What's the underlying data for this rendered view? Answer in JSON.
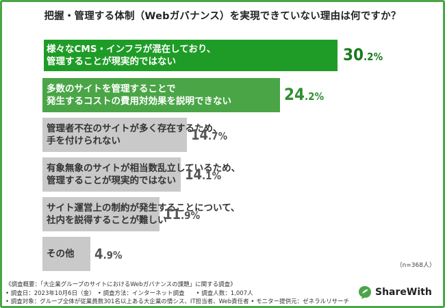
{
  "title": "把握・管理する体制（Webガバナンス）を実現できていない理由は何ですか？",
  "sample_size": "（n=368人）",
  "footnotes": [
    "《調査概要：「大企業グループのサイトにおけるWebガバナンスの課題」に関する調査》",
    "• 調査日：2023年10月6日（金）　• 調査方法：インターネット調査　　• 調査人数：1,007人",
    "• 調査対象：グループ全体が従業員数301名以上ある大企業の情シス、IT担当者、Web責任者 • モニター提供元：ゼネラルリサーチ"
  ],
  "brand": {
    "name": "ShareWith",
    "icon": "leaf-speech-bubble-icon",
    "color": "#4aa547"
  },
  "colors": {
    "dark_green": "#1f9c27",
    "light_green": "#4aa547",
    "gray": "#c9c9c9"
  },
  "chart_data": {
    "type": "bar",
    "orientation": "horizontal",
    "unit": "%",
    "categories": [
      "様々なCMS・インフラが混在しており、\n管理することが現実的ではない",
      "多数のサイトを管理することで\n発生するコストの費用対効果を説明できない",
      "管理者不在のサイトが多く存在するため、\n手を付けられない",
      "有象無象のサイトが相当数乱立しているため、\n管理することが現実的ではない",
      "サイト運営上の制約が発生することについて、\n社内を説得することが難しい",
      "その他"
    ],
    "values": [
      30.2,
      24.2,
      14.7,
      14.1,
      11.9,
      4.9
    ],
    "value_labels": [
      "30.2%",
      "24.2%",
      "14.7%",
      "14.1%",
      "11.9%",
      "4.9%"
    ],
    "xlim": [
      0,
      33
    ]
  }
}
